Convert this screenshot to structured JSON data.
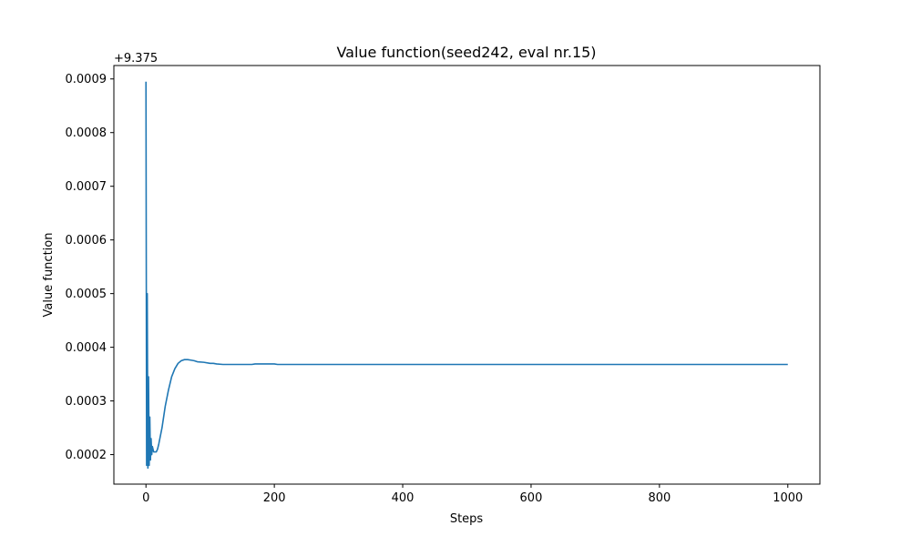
{
  "chart_data": {
    "type": "line",
    "title": "Value function(seed242, eval nr.15)",
    "xlabel": "Steps",
    "ylabel": "Value function",
    "y_offset_label": "+9.375",
    "xlim": [
      -50,
      1050
    ],
    "ylim": [
      0.000145,
      0.000925
    ],
    "x_ticks": [
      0,
      200,
      400,
      600,
      800,
      1000
    ],
    "x_tick_labels": [
      "0",
      "200",
      "400",
      "600",
      "800",
      "1000"
    ],
    "y_ticks": [
      0.0002,
      0.0003,
      0.0004,
      0.0005,
      0.0006,
      0.0007,
      0.0008,
      0.0009
    ],
    "y_tick_labels": [
      "0.0002",
      "0.0003",
      "0.0004",
      "0.0005",
      "0.0006",
      "0.0007",
      "0.0008",
      "0.0009"
    ],
    "grid": false,
    "line_color": "#1f77b4",
    "series": [
      {
        "x": [
          0,
          1,
          2,
          3,
          4,
          5,
          6,
          7,
          8,
          9,
          10,
          12,
          14,
          16,
          18,
          20,
          25,
          30,
          35,
          40,
          45,
          50,
          55,
          60,
          65,
          70,
          75,
          80,
          90,
          100,
          105,
          110,
          120,
          150,
          165,
          170,
          200,
          205,
          250,
          300,
          400,
          500,
          600,
          700,
          800,
          900,
          1000
        ],
        "values": [
          0.000895,
          0.00018,
          0.0005,
          0.000175,
          0.000345,
          0.00018,
          0.00027,
          0.00019,
          0.00023,
          0.0002,
          0.000215,
          0.000205,
          0.000205,
          0.000205,
          0.00021,
          0.00022,
          0.00025,
          0.00029,
          0.00032,
          0.000345,
          0.00036,
          0.00037,
          0.000375,
          0.000377,
          0.000377,
          0.000376,
          0.000375,
          0.000373,
          0.000372,
          0.00037,
          0.00037,
          0.000369,
          0.000368,
          0.000368,
          0.000368,
          0.000369,
          0.000369,
          0.000368,
          0.000368,
          0.000368,
          0.000368,
          0.000368,
          0.000368,
          0.000368,
          0.000368,
          0.000368,
          0.000368
        ]
      }
    ]
  }
}
